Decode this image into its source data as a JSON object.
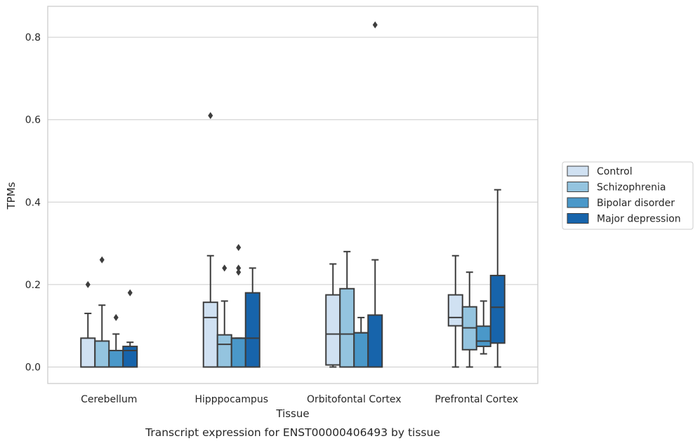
{
  "chart_data": {
    "type": "boxplot",
    "caption": "Transcript expression for ENST00000406493 by tissue",
    "xlabel": "Tissue",
    "ylabel": "TPMs",
    "ylim": [
      -0.04,
      0.875
    ],
    "yticks": [
      0.0,
      0.2,
      0.4,
      0.6,
      0.8
    ],
    "ytick_labels": [
      "0.0",
      "0.2",
      "0.4",
      "0.6",
      "0.8"
    ],
    "grid": "horizontal",
    "legend_position": "right",
    "categories": [
      "Cerebellum",
      "Hipppocampus",
      "Orbitofontal Cortex",
      "Prefrontal Cortex"
    ],
    "series": [
      {
        "name": "Control",
        "color": "#d0e1f2",
        "boxes": [
          {
            "whislo": 0.0,
            "q1": 0.0,
            "med": 0.0,
            "q3": 0.07,
            "whishi": 0.13,
            "fliers": [
              0.2
            ]
          },
          {
            "whislo": 0.0,
            "q1": 0.0,
            "med": 0.12,
            "q3": 0.157,
            "whishi": 0.27,
            "fliers": [
              0.61
            ]
          },
          {
            "whislo": 0.0,
            "q1": 0.005,
            "med": 0.08,
            "q3": 0.175,
            "whishi": 0.25,
            "fliers": []
          },
          {
            "whislo": 0.0,
            "q1": 0.1,
            "med": 0.12,
            "q3": 0.175,
            "whishi": 0.27,
            "fliers": []
          }
        ]
      },
      {
        "name": "Schizophrenia",
        "color": "#94c4df",
        "boxes": [
          {
            "whislo": 0.0,
            "q1": 0.0,
            "med": 0.0,
            "q3": 0.063,
            "whishi": 0.15,
            "fliers": [
              0.26
            ]
          },
          {
            "whislo": 0.0,
            "q1": 0.0,
            "med": 0.055,
            "q3": 0.078,
            "whishi": 0.16,
            "fliers": [
              0.24
            ]
          },
          {
            "whislo": 0.0,
            "q1": 0.0,
            "med": 0.08,
            "q3": 0.19,
            "whishi": 0.28,
            "fliers": []
          },
          {
            "whislo": 0.0,
            "q1": 0.042,
            "med": 0.095,
            "q3": 0.146,
            "whishi": 0.23,
            "fliers": []
          }
        ]
      },
      {
        "name": "Bipolar disorder",
        "color": "#4a98c9",
        "boxes": [
          {
            "whislo": 0.0,
            "q1": 0.0,
            "med": 0.0,
            "q3": 0.04,
            "whishi": 0.08,
            "fliers": [
              0.12
            ]
          },
          {
            "whislo": 0.0,
            "q1": 0.0,
            "med": 0.07,
            "q3": 0.07,
            "whishi": 0.07,
            "fliers": [
              0.23,
              0.24,
              0.29
            ]
          },
          {
            "whislo": 0.0,
            "q1": 0.0,
            "med": 0.083,
            "q3": 0.083,
            "whishi": 0.12,
            "fliers": []
          },
          {
            "whislo": 0.032,
            "q1": 0.05,
            "med": 0.063,
            "q3": 0.099,
            "whishi": 0.16,
            "fliers": []
          }
        ]
      },
      {
        "name": "Major depression",
        "color": "#1764ab",
        "boxes": [
          {
            "whislo": 0.0,
            "q1": 0.0,
            "med": 0.04,
            "q3": 0.05,
            "whishi": 0.06,
            "fliers": [
              0.18
            ]
          },
          {
            "whislo": 0.0,
            "q1": 0.0,
            "med": 0.07,
            "q3": 0.18,
            "whishi": 0.24,
            "fliers": []
          },
          {
            "whislo": 0.0,
            "q1": 0.0,
            "med": 0.0,
            "q3": 0.126,
            "whishi": 0.26,
            "fliers": [
              0.83
            ]
          },
          {
            "whislo": 0.0,
            "q1": 0.058,
            "med": 0.145,
            "q3": 0.222,
            "whishi": 0.43,
            "fliers": []
          }
        ]
      }
    ]
  }
}
